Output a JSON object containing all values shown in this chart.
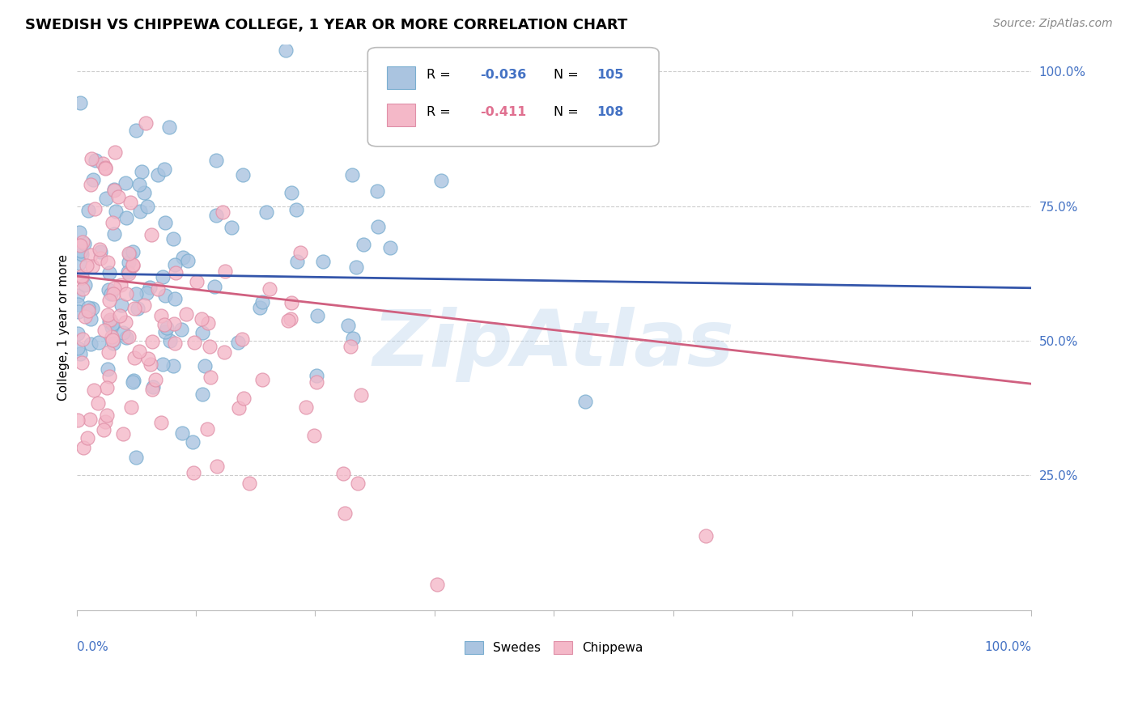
{
  "title": "SWEDISH VS CHIPPEWA COLLEGE, 1 YEAR OR MORE CORRELATION CHART",
  "source": "Source: ZipAtlas.com",
  "ylabel": "College, 1 year or more",
  "swedes_color": "#aac4e0",
  "swedes_edge": "#7aaed0",
  "chippewa_color": "#f4b8c8",
  "chippewa_edge": "#e090a8",
  "blue_line_color": "#3355aa",
  "pink_line_color": "#d06080",
  "watermark": "ZipAtlas",
  "bg_color": "#ffffff",
  "grid_color": "#cccccc",
  "title_fontsize": 13,
  "source_fontsize": 10,
  "axis_fontsize": 11,
  "R_swedes": -0.036,
  "N_swedes": 105,
  "R_chippewa": -0.411,
  "N_chippewa": 108,
  "blue_line_x0": 0.0,
  "blue_line_y0": 0.625,
  "blue_line_x1": 1.0,
  "blue_line_y1": 0.598,
  "pink_line_x0": 0.0,
  "pink_line_y0": 0.62,
  "pink_line_x1": 1.0,
  "pink_line_y1": 0.42,
  "ylim_min": 0.0,
  "ylim_max": 1.05,
  "xlim_min": 0.0,
  "xlim_max": 1.0
}
